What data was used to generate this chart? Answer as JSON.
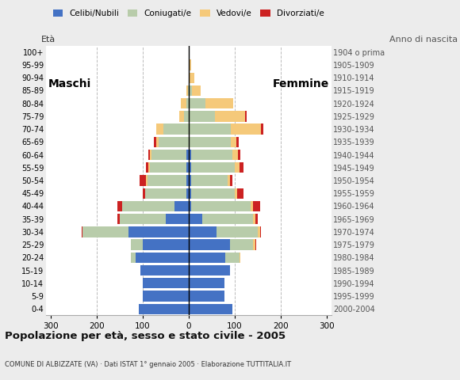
{
  "age_groups": [
    "0-4",
    "5-9",
    "10-14",
    "15-19",
    "20-24",
    "25-29",
    "30-34",
    "35-39",
    "40-44",
    "45-49",
    "50-54",
    "55-59",
    "60-64",
    "65-69",
    "70-74",
    "75-79",
    "80-84",
    "85-89",
    "90-94",
    "95-99",
    "100+"
  ],
  "birth_years": [
    "2000-2004",
    "1995-1999",
    "1990-1994",
    "1985-1989",
    "1980-1984",
    "1975-1979",
    "1970-1974",
    "1965-1969",
    "1960-1964",
    "1955-1959",
    "1950-1954",
    "1945-1949",
    "1940-1944",
    "1935-1939",
    "1930-1934",
    "1925-1929",
    "1920-1924",
    "1915-1919",
    "1910-1914",
    "1905-1909",
    "1904 o prima"
  ],
  "male": {
    "celibe": [
      108,
      100,
      100,
      105,
      115,
      100,
      130,
      50,
      30,
      5,
      5,
      5,
      5,
      0,
      0,
      0,
      0,
      0,
      0,
      0,
      0
    ],
    "coniugato": [
      0,
      0,
      0,
      0,
      10,
      25,
      100,
      100,
      115,
      90,
      85,
      80,
      75,
      65,
      55,
      10,
      5,
      2,
      0,
      0,
      0
    ],
    "vedovo": [
      0,
      0,
      0,
      0,
      0,
      0,
      0,
      0,
      0,
      0,
      2,
      2,
      5,
      5,
      15,
      10,
      12,
      2,
      0,
      0,
      0
    ],
    "divorziato": [
      0,
      0,
      0,
      0,
      0,
      0,
      2,
      5,
      10,
      5,
      15,
      5,
      2,
      5,
      0,
      0,
      0,
      0,
      0,
      0,
      0
    ]
  },
  "female": {
    "nubile": [
      95,
      78,
      78,
      90,
      80,
      90,
      60,
      30,
      5,
      5,
      5,
      5,
      5,
      2,
      2,
      2,
      2,
      2,
      2,
      0,
      0
    ],
    "coniugata": [
      0,
      0,
      0,
      0,
      30,
      50,
      90,
      110,
      130,
      95,
      80,
      95,
      90,
      90,
      90,
      55,
      35,
      5,
      0,
      0,
      0
    ],
    "vedova": [
      0,
      0,
      0,
      0,
      2,
      5,
      5,
      5,
      5,
      5,
      5,
      10,
      12,
      12,
      65,
      65,
      60,
      20,
      10,
      5,
      0
    ],
    "divorziata": [
      0,
      0,
      0,
      0,
      0,
      2,
      2,
      5,
      15,
      15,
      5,
      10,
      5,
      5,
      5,
      5,
      0,
      0,
      0,
      0,
      0
    ]
  },
  "colors": {
    "celibe": "#4472c4",
    "coniugato": "#b8ccaa",
    "vedovo": "#f5c97a",
    "divorziato": "#cc2222"
  },
  "xlim": 310,
  "title": "Popolazione per età, sesso e stato civile - 2005",
  "subtitle": "COMUNE DI ALBIZZATE (VA) · Dati ISTAT 1° gennaio 2005 · Elaborazione TUTTITALIA.IT",
  "ylabel_left": "Età",
  "ylabel_right": "Anno di nascita",
  "label_maschi": "Maschi",
  "label_femmine": "Femmine",
  "legend_labels": [
    "Celibi/Nubili",
    "Coniugati/e",
    "Vedovi/e",
    "Divorziati/e"
  ],
  "bg_color": "#ececec",
  "plot_bg_color": "#ffffff",
  "grid_color": "#bbbbbb"
}
